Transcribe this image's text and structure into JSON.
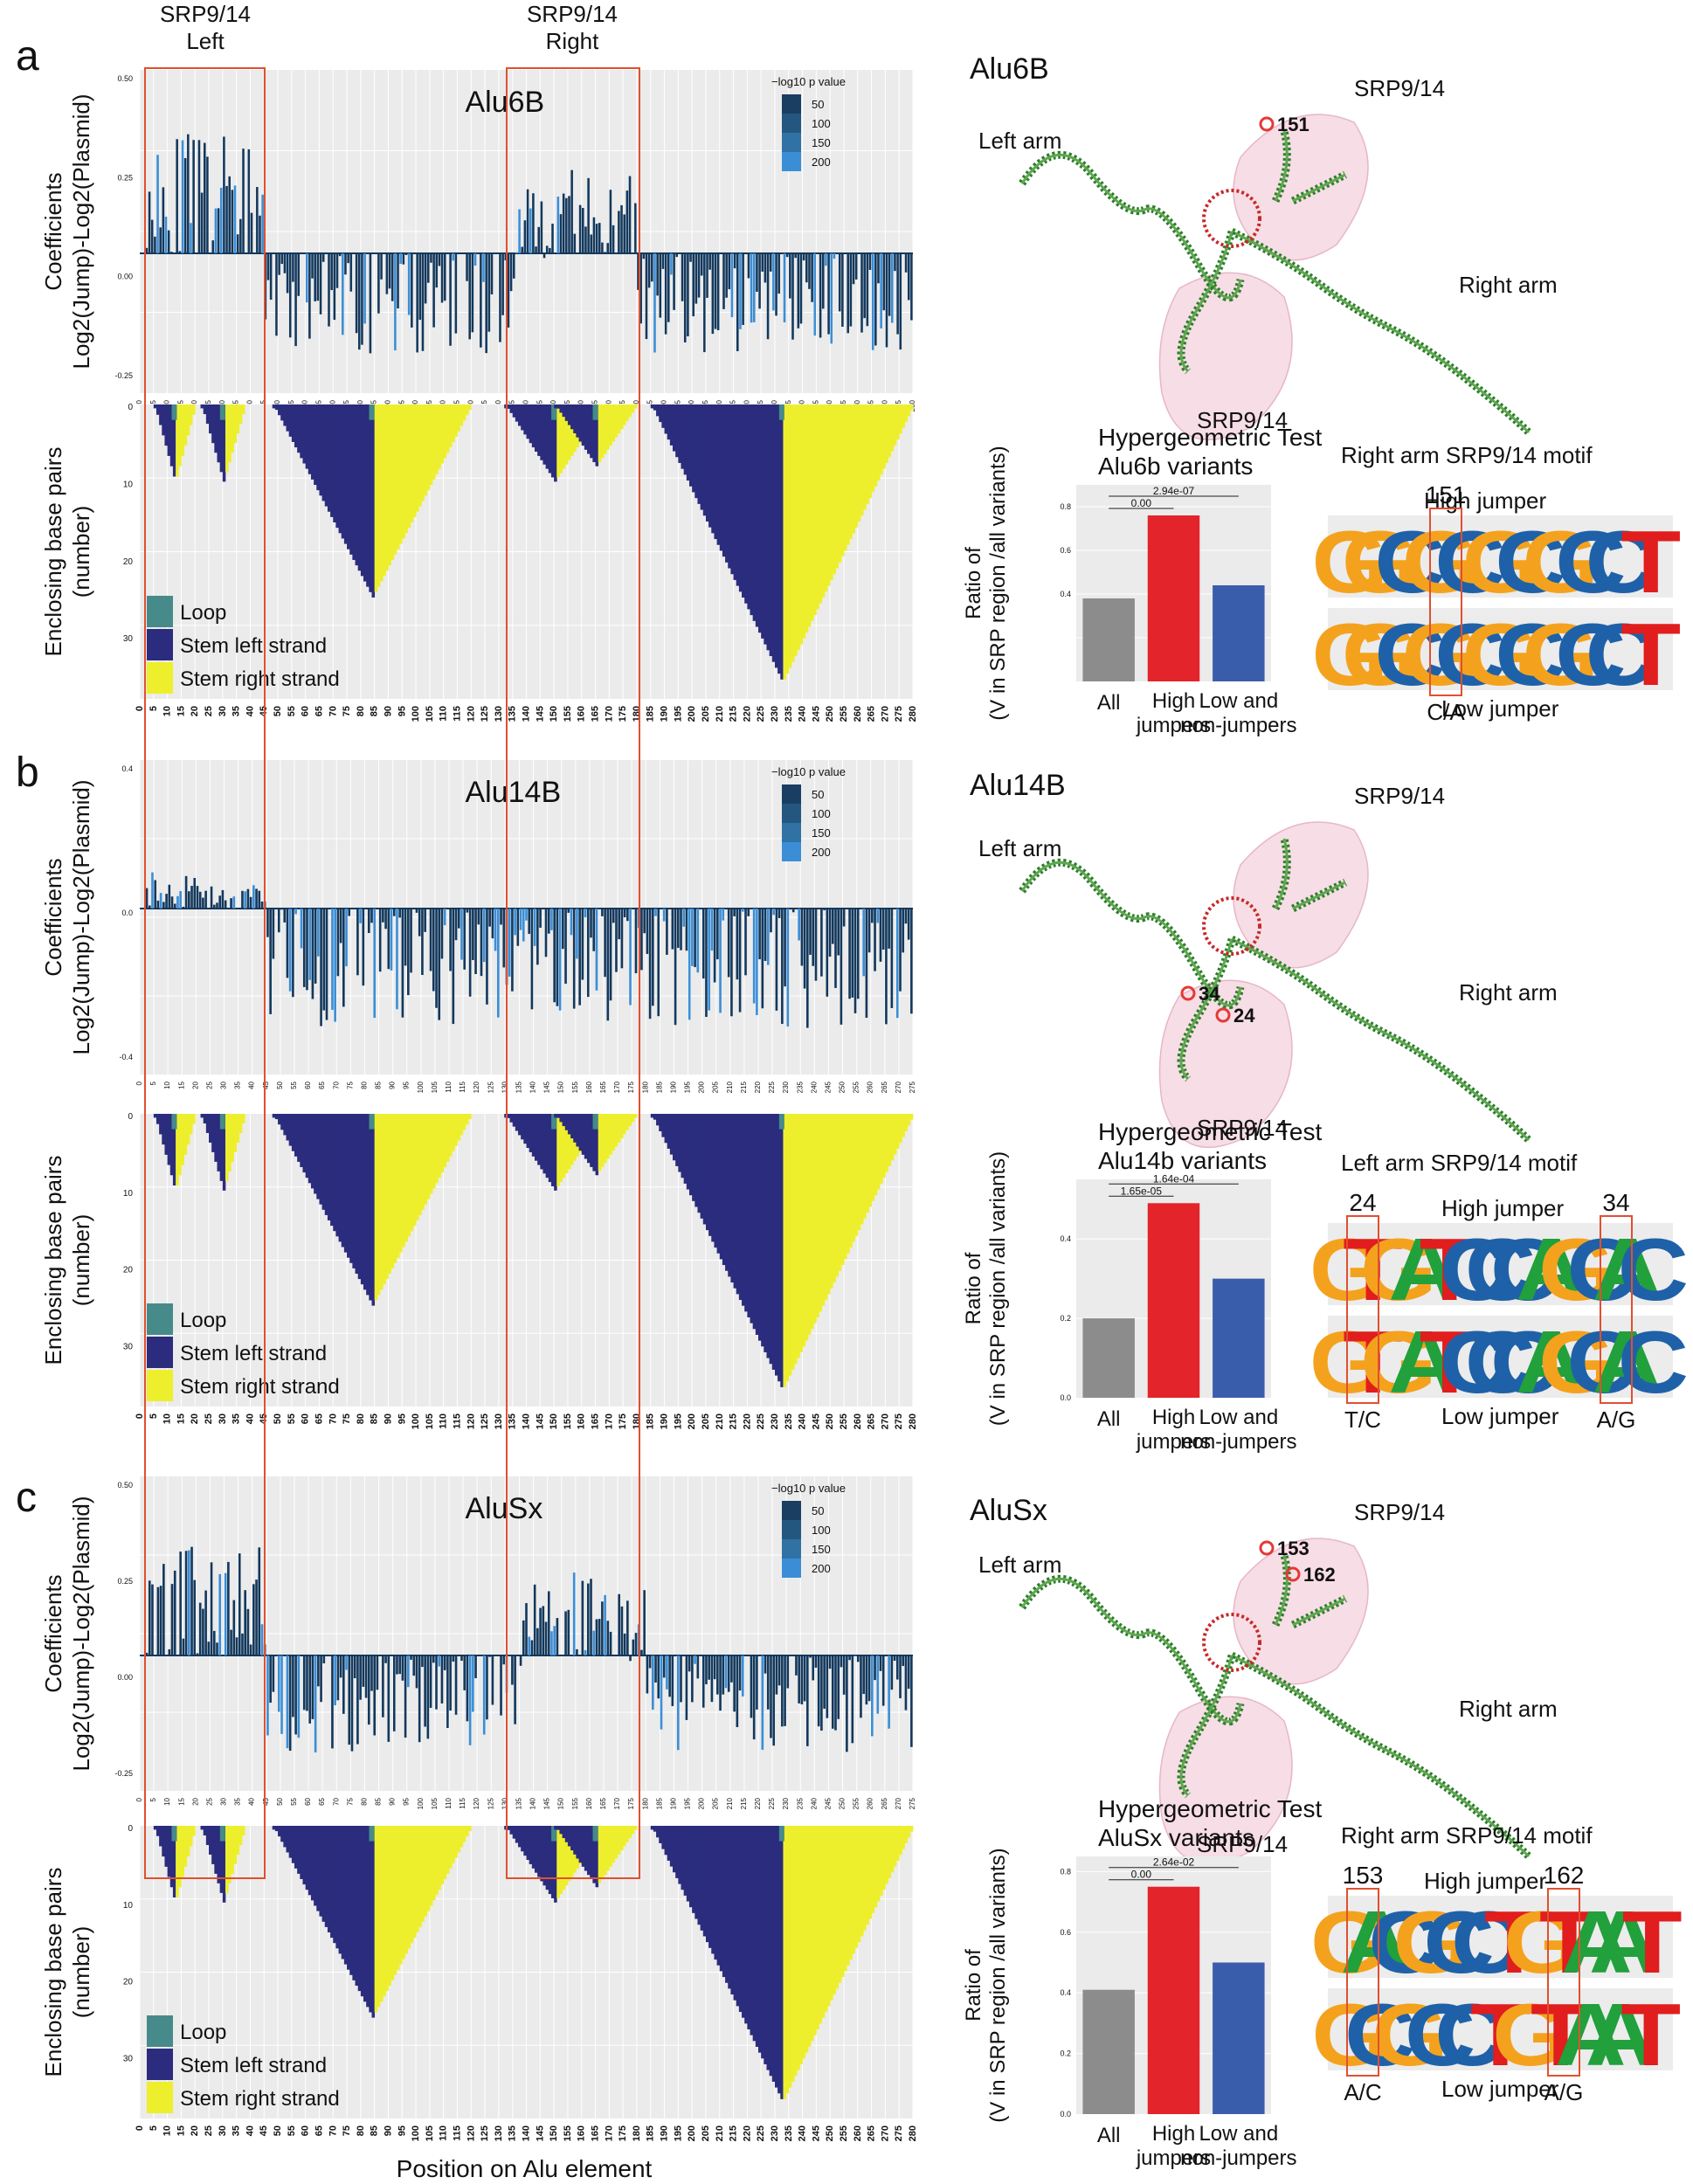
{
  "header": {
    "srp_left_title": "SRP9/14",
    "srp_left_sub": "Left",
    "srp_right_title": "SRP9/14",
    "srp_right_sub": "Right"
  },
  "footer": {
    "xaxis_label": "Position on Alu element"
  },
  "common": {
    "coef_ylabel_1": "Coefficients",
    "coef_ylabel_2": "Log2(Jump)-Log2(Plasmid)",
    "pair_ylabel_1": "Enclosing base pairs",
    "pair_ylabel_2": "(number)",
    "pval_legend_title": "−log10 p value",
    "pval_legend_items": [
      "50",
      "100",
      "150",
      "200"
    ],
    "structure_legend": [
      "Loop",
      "Stem left strand",
      "Stem right strand"
    ],
    "srp_label": "SRP9/14",
    "left_arm": "Left arm",
    "right_arm": "Right arm",
    "hyper_title": "Hypergeometric Test",
    "bar_ylabel_1": "Ratio of",
    "bar_ylabel_2": "(V in SRP region /all variants)",
    "bar_categories": [
      "All",
      "High jumpers",
      "Low and non-jumpers"
    ],
    "high_jumper": "High jumper",
    "low_jumper": "Low jumper"
  },
  "colors": {
    "panel_bg": "#ebebeb",
    "grid": "#ffffff",
    "coef_dark": "#13385c",
    "coef_light": "#3b8ed6",
    "loop": "#468a8a",
    "stem_left": "#2b2c7d",
    "stem_right": "#eeef2c",
    "bar_all": "#8c8c8c",
    "bar_high": "#e3242b",
    "bar_low": "#3a5dab",
    "srp_box": "#e05030",
    "srp_bubble": "#f7dde5"
  },
  "panels": [
    {
      "letter": "a",
      "title": "Alu6B",
      "coef_ticks": [
        "0.50",
        "0.25",
        "0.00",
        "-0.25"
      ],
      "pair_ticks": [
        "0",
        "10",
        "20",
        "30"
      ],
      "pos_max": 280,
      "hyper_subtitle": "Alu6b variants",
      "motif_title": "Right arm SRP9/14 motif",
      "struct_labels": [
        "151"
      ],
      "chart_data": {
        "type": "bar",
        "title": "Hypergeometric Test Alu6b variants",
        "categories": [
          "All",
          "High jumpers",
          "Low and non-jumpers"
        ],
        "values": [
          0.38,
          0.76,
          0.44
        ],
        "ylim": [
          0,
          0.9
        ],
        "yticks": [
          "0.4",
          "0.6",
          "0.8"
        ],
        "pvalues": [
          "0.00",
          "2.94e-07"
        ]
      },
      "motif": {
        "high": "GGCGCGCGCCT",
        "low": "GGCGCGCGCCT",
        "pos_labels": [
          "151"
        ],
        "var_labels": [
          "C/A"
        ]
      }
    },
    {
      "letter": "b",
      "title": "Alu14B",
      "coef_ticks": [
        "0.4",
        "0.0",
        "-0.4"
      ],
      "pair_ticks": [
        "0",
        "10",
        "20",
        "30"
      ],
      "pos_max": 275,
      "hyper_subtitle": "Alu14b variants",
      "motif_title": "Left arm SRP9/14 motif",
      "struct_labels": [
        "34",
        "24"
      ],
      "chart_data": {
        "type": "bar",
        "title": "Hypergeometric Test Alu14b variants",
        "categories": [
          "All",
          "High jumpers",
          "Low and non-jumpers"
        ],
        "values": [
          0.2,
          0.49,
          0.3
        ],
        "ylim": [
          0,
          0.55
        ],
        "yticks": [
          "0.0",
          "0.2",
          "0.4"
        ],
        "pvalues": [
          "1.65e-05",
          "1.64e-04"
        ]
      },
      "motif": {
        "high": "GTGATCCCAGCAC",
        "low": "GTGATCCCAGCAC",
        "pos_labels": [
          "24",
          "34"
        ],
        "var_labels": [
          "T/C",
          "A/G"
        ]
      }
    },
    {
      "letter": "c",
      "title": "AluSx",
      "coef_ticks": [
        "0.50",
        "0.25",
        "0.00",
        "-0.25"
      ],
      "pair_ticks": [
        "0",
        "10",
        "20",
        "30"
      ],
      "pos_max": 275,
      "hyper_subtitle": "AluSx variants",
      "motif_title": "Right arm SRP9/14 motif",
      "struct_labels": [
        "153",
        "162"
      ],
      "chart_data": {
        "type": "bar",
        "title": "Hypergeometric Test AluSx variants",
        "categories": [
          "All",
          "High jumpers",
          "Low and non-jumpers"
        ],
        "values": [
          0.41,
          0.75,
          0.5
        ],
        "ylim": [
          0,
          0.85
        ],
        "yticks": [
          "0.0",
          "0.2",
          "0.4",
          "0.6",
          "0.8"
        ],
        "pvalues": [
          "0.00",
          "2.64e-02"
        ]
      },
      "motif": {
        "high": "GACGCCTGTAAT",
        "low": "GCGCCTGTAAT",
        "pos_labels": [
          "153",
          "162"
        ],
        "var_labels": [
          "A/C",
          "A/G"
        ]
      }
    }
  ]
}
